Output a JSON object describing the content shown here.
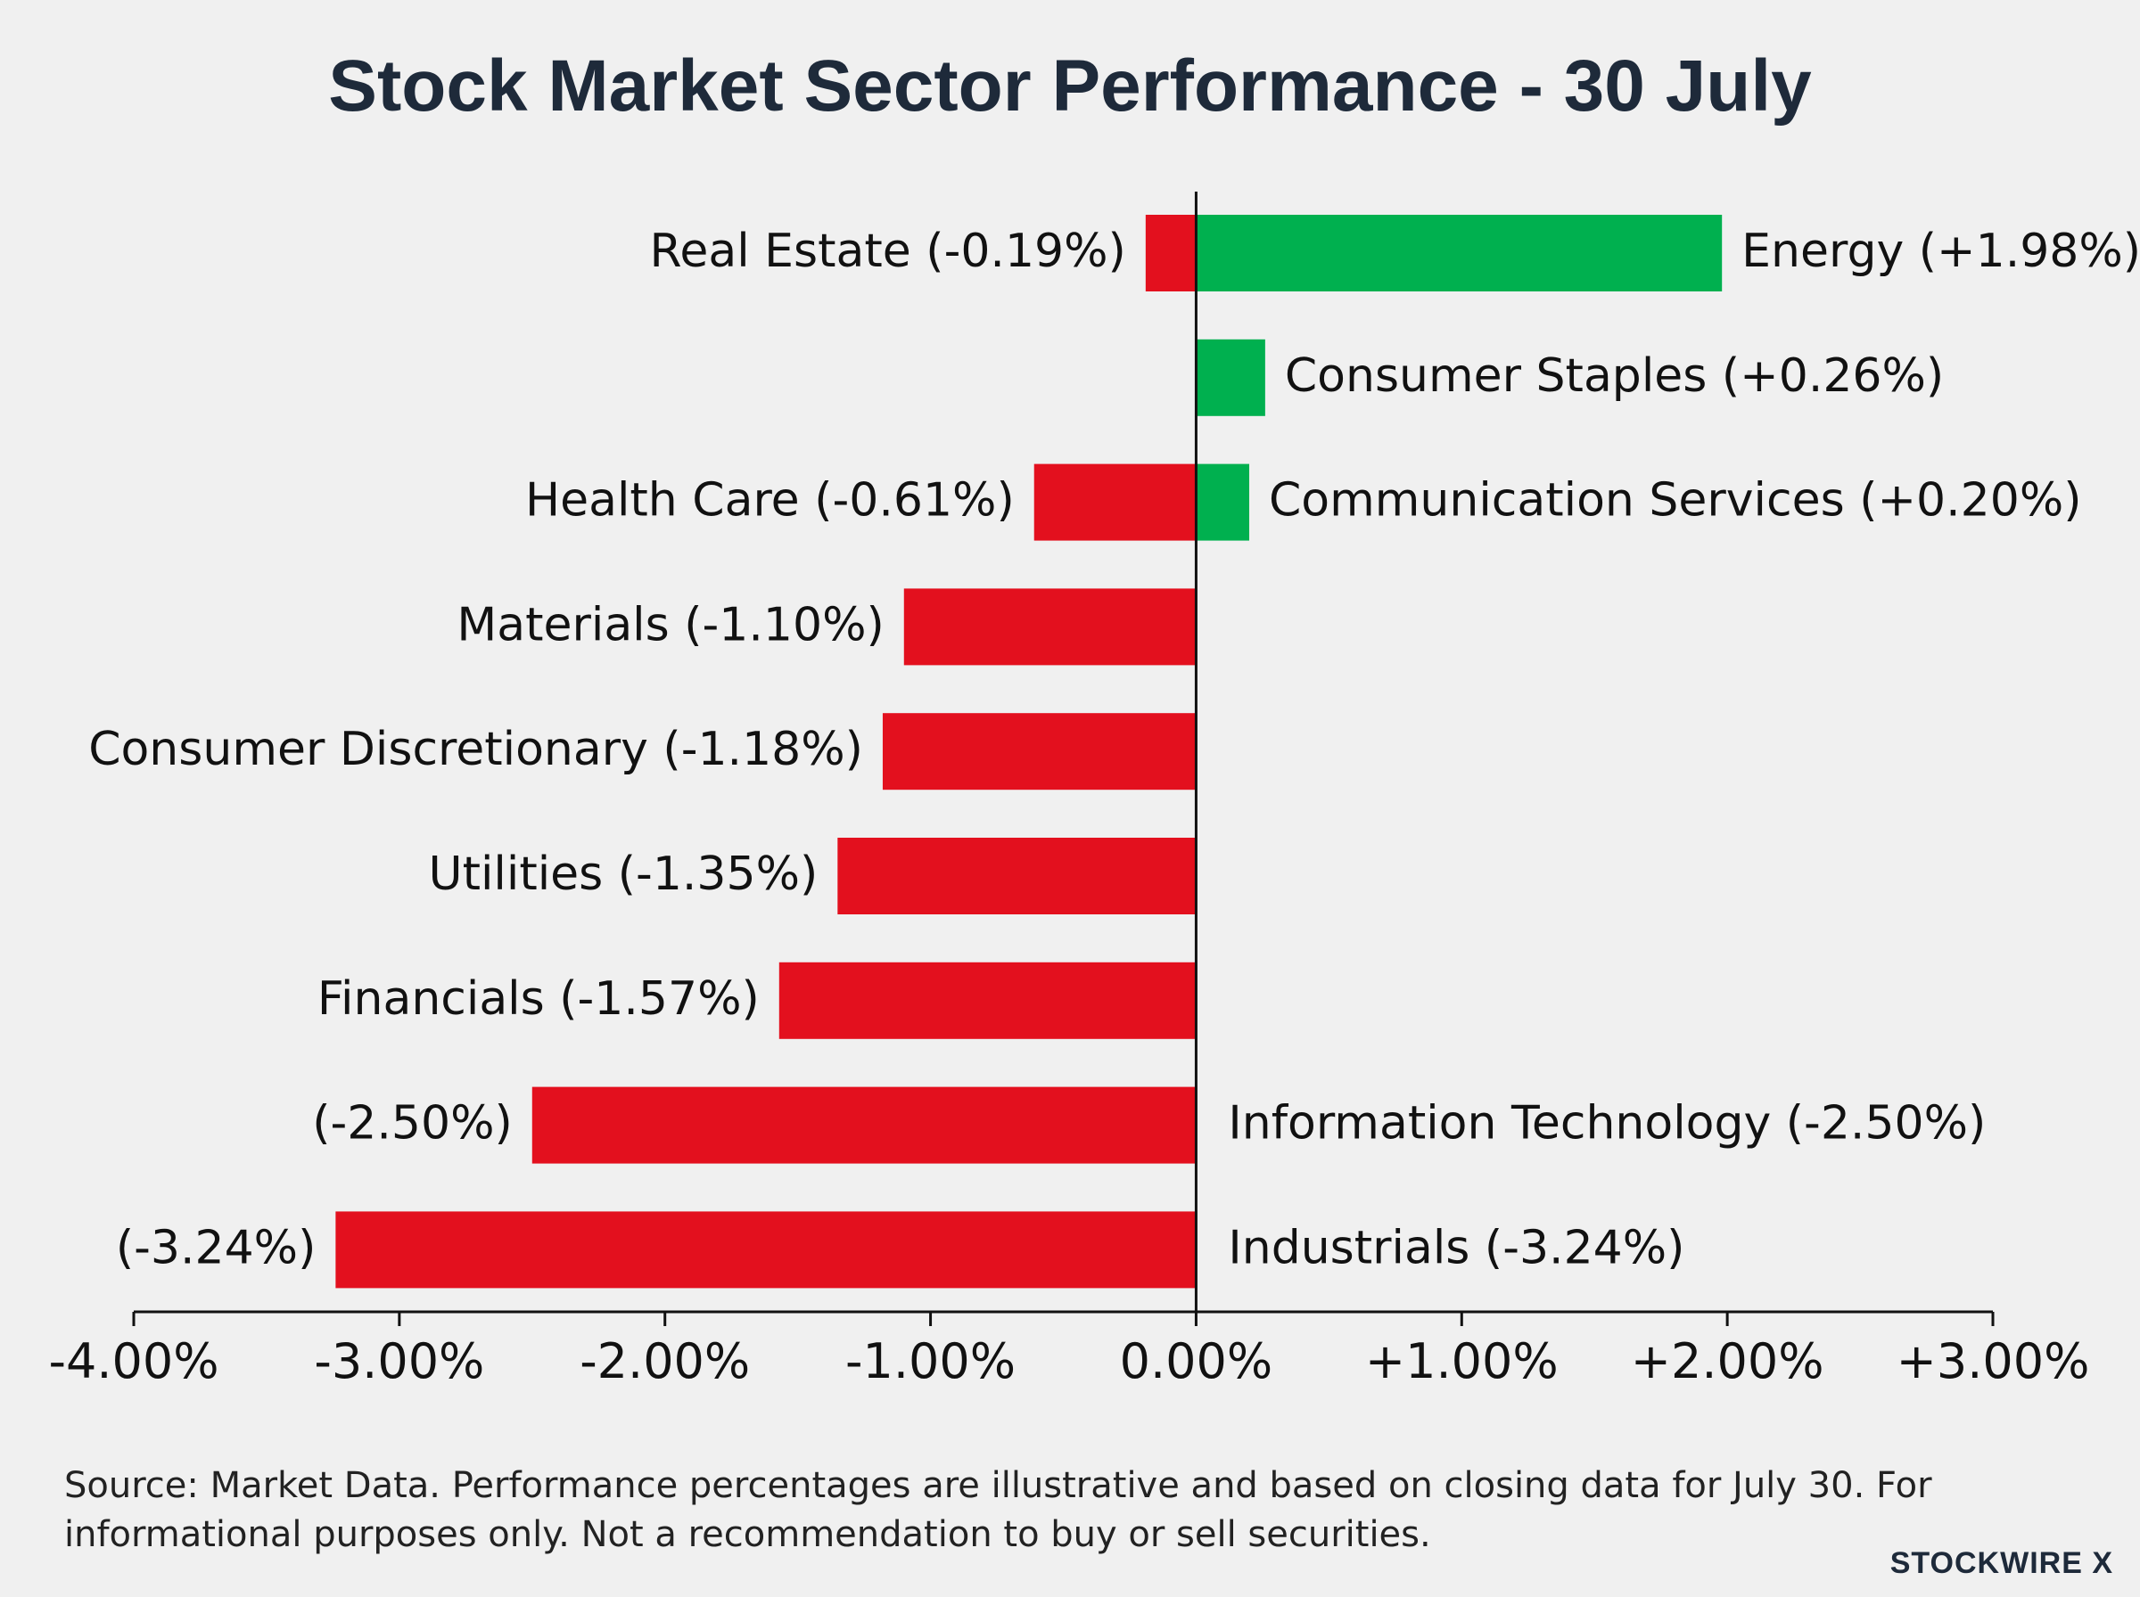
{
  "chart_data": {
    "type": "bar",
    "orientation": "horizontal",
    "title": "Stock Market Sector Performance - 30 July",
    "xlim": [
      -4,
      3
    ],
    "x_ticks": [
      -4,
      -3,
      -2,
      -1,
      0,
      1,
      2,
      3
    ],
    "x_tick_labels": [
      "-4.00%",
      "-3.00%",
      "-2.00%",
      "-1.00%",
      "0.00%",
      "+1.00%",
      "+2.00%",
      "+3.00%"
    ],
    "colors": {
      "positive": "#00b04f",
      "negative": "#e3101e"
    },
    "bars": [
      {
        "row": 0,
        "value": -0.19,
        "label": "Real Estate (-0.19%)",
        "label_side": "left"
      },
      {
        "row": 0,
        "value": 1.98,
        "label": "Energy (+1.98%)",
        "label_side": "right"
      },
      {
        "row": 1,
        "value": 0.26,
        "label": "Consumer Staples (+0.26%)",
        "label_side": "right"
      },
      {
        "row": 2,
        "value": -0.61,
        "label": "Health Care (-0.61%)",
        "label_side": "left"
      },
      {
        "row": 2,
        "value": 0.2,
        "label": "Communication Services (+0.20%)",
        "label_side": "right"
      },
      {
        "row": 3,
        "value": -1.1,
        "label": "Materials (-1.10%)",
        "label_side": "left"
      },
      {
        "row": 4,
        "value": -1.18,
        "label": "Consumer Discretionary (-1.18%)",
        "label_side": "left"
      },
      {
        "row": 5,
        "value": -1.35,
        "label": "Utilities (-1.35%)",
        "label_side": "left"
      },
      {
        "row": 6,
        "value": -1.57,
        "label": "Financials (-1.57%)",
        "label_side": "left"
      },
      {
        "row": 7,
        "value": -2.5,
        "label": "(-2.50%)",
        "label_side": "left"
      },
      {
        "row": 7,
        "value": -2.5,
        "label": "Information Technology (-2.50%)",
        "label_side": "right",
        "label_only": true
      },
      {
        "row": 8,
        "value": -3.24,
        "label": "(-3.24%)",
        "label_side": "left"
      },
      {
        "row": 8,
        "value": -3.24,
        "label": "Industrials (-3.24%)",
        "label_side": "right",
        "label_only": true
      }
    ]
  },
  "footer": {
    "source": "Source: Market Data. Performance percentages are illustrative and based on closing data for July 30. For informational purposes only. Not a recommendation to buy or sell securities.",
    "brand": "STOCKWIRE X"
  }
}
